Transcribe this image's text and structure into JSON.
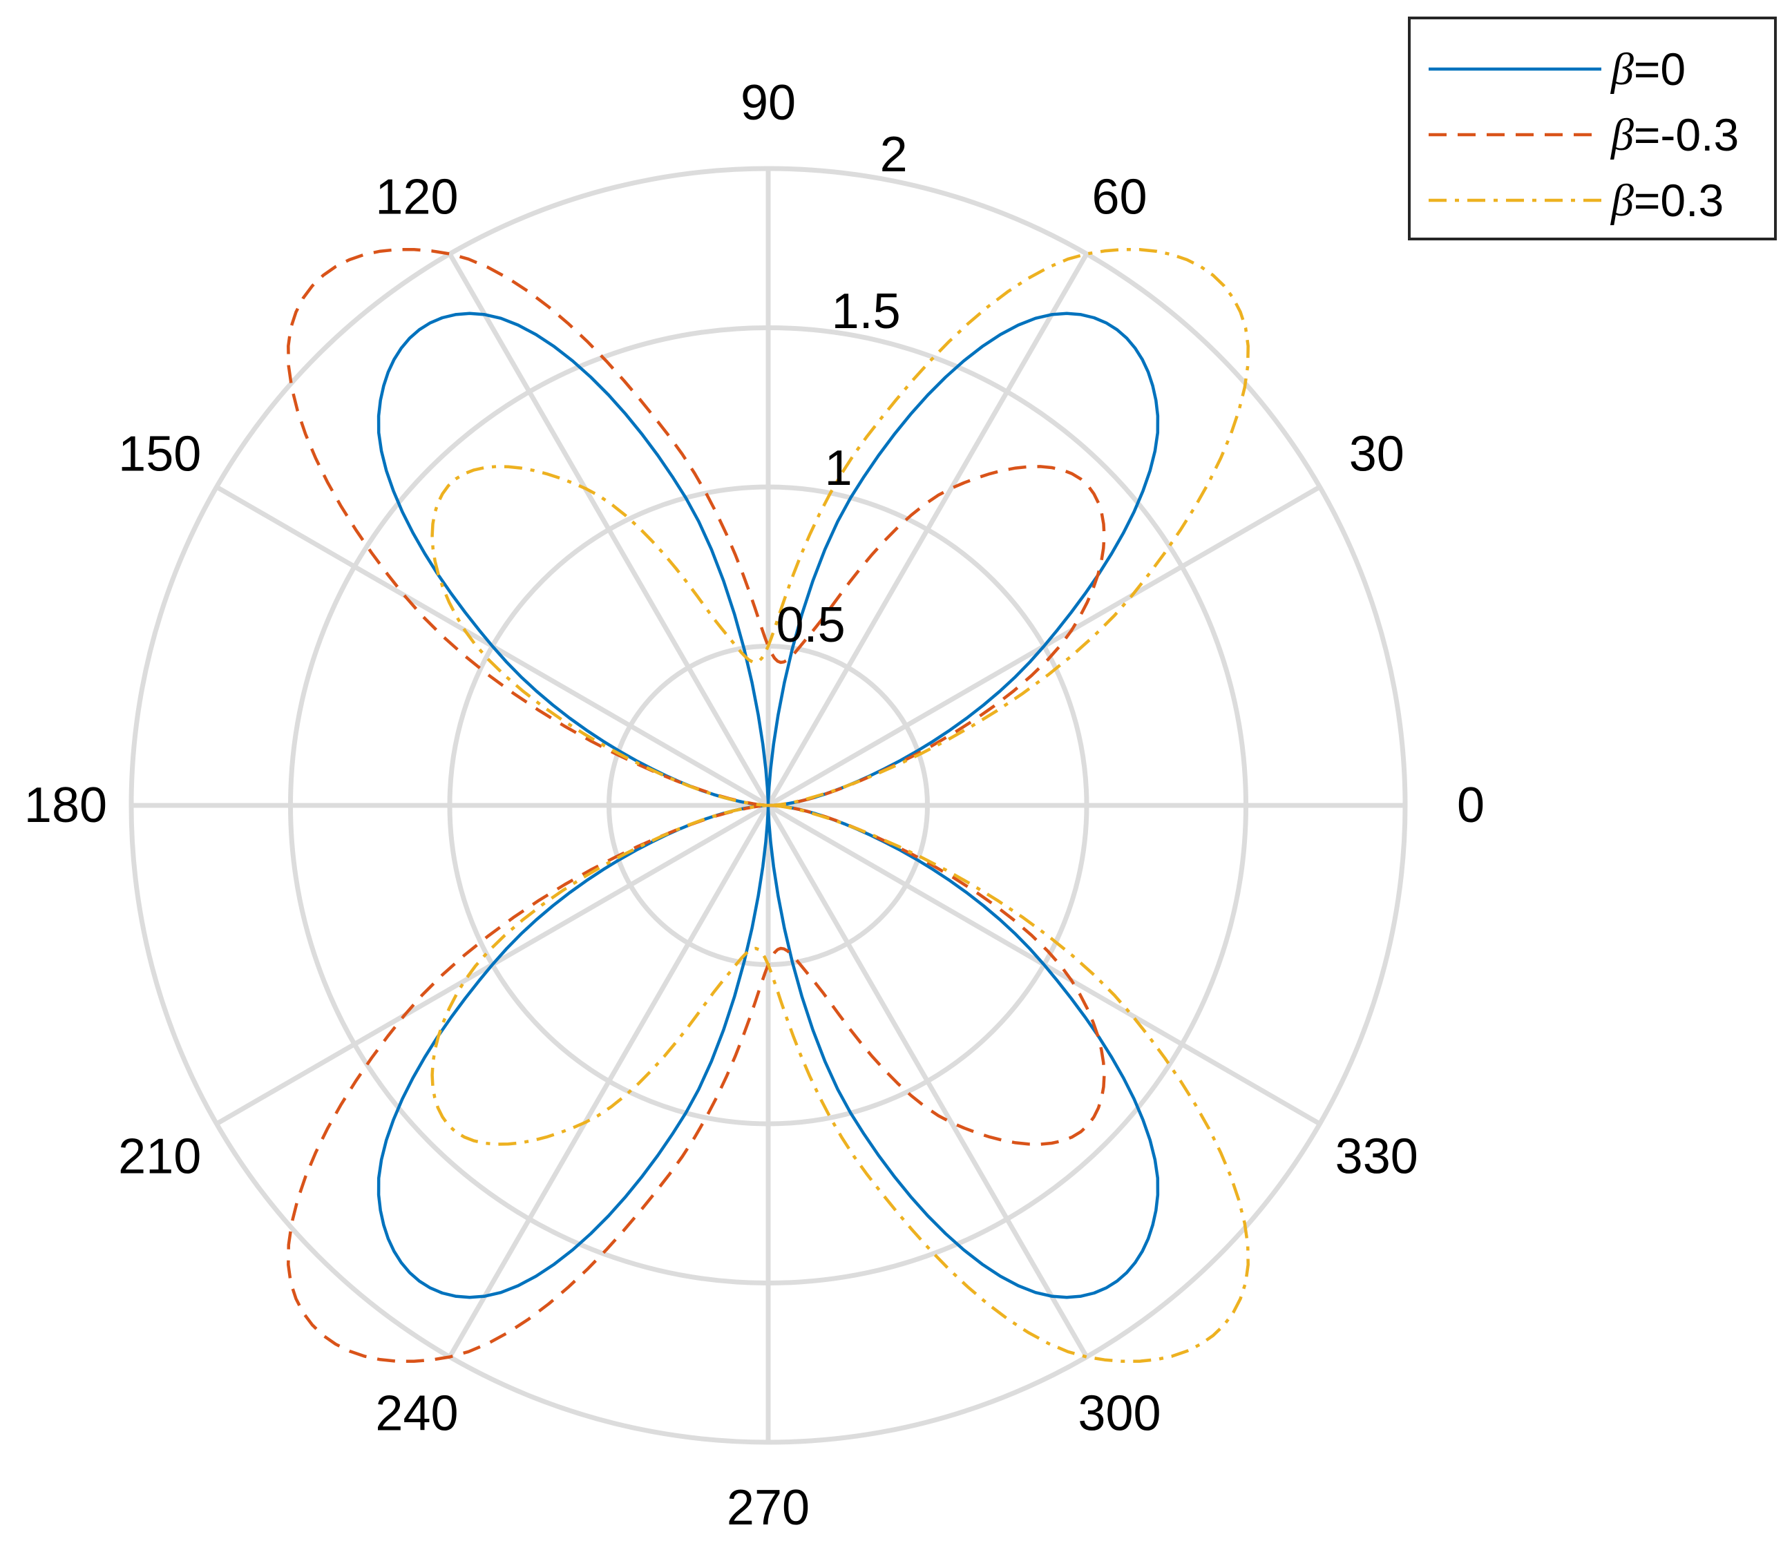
{
  "chart_data": {
    "type": "line",
    "coordinate_system": "polar",
    "title": "",
    "theta_unit": "degrees",
    "theta_ticks": [
      0,
      30,
      60,
      90,
      120,
      150,
      180,
      210,
      240,
      270,
      300,
      330
    ],
    "theta_tick_labels": [
      "0",
      "30",
      "60",
      "90",
      "120",
      "150",
      "180",
      "210",
      "240",
      "270",
      "300",
      "330"
    ],
    "r_ticks": [
      0.5,
      1,
      1.5,
      2
    ],
    "r_tick_labels": [
      "0.5",
      "1",
      "1.5",
      "2"
    ],
    "rlim": [
      0,
      2
    ],
    "grid": true,
    "legend_position": "top-right",
    "series": [
      {
        "name": "β=0",
        "label_symbol": "β",
        "label_value": "=0",
        "color": "#0072BD",
        "style": "solid",
        "theta": [
          0,
          15,
          30,
          45,
          60,
          75,
          90,
          105,
          120,
          135,
          150,
          165,
          180,
          195,
          210,
          225,
          240,
          255,
          270,
          285,
          300,
          315,
          330,
          345,
          360
        ],
        "r": [
          0,
          0.29,
          1.0,
          1.73,
          1.78,
          1.0,
          0,
          1.0,
          1.78,
          1.73,
          1.0,
          0.29,
          0,
          0.29,
          1.0,
          1.73,
          1.78,
          1.0,
          0,
          1.0,
          1.78,
          1.73,
          1.0,
          0.29,
          0
        ]
      },
      {
        "name": "β=-0.3",
        "label_symbol": "β",
        "label_value": "=-0.3",
        "color": "#D95319",
        "style": "dashed",
        "theta": [
          0,
          15,
          30,
          45,
          60,
          75,
          90,
          105,
          120,
          135,
          150,
          165,
          180,
          195,
          210,
          225,
          240,
          255,
          270,
          285,
          300,
          315,
          330,
          345,
          360
        ],
        "r": [
          0,
          0.3,
          1.1,
          1.42,
          1.15,
          0.58,
          0.5,
          1.2,
          2.0,
          2.12,
          1.32,
          0.3,
          0,
          0.3,
          1.32,
          2.12,
          2.0,
          1.2,
          0.5,
          0.58,
          1.15,
          1.42,
          1.1,
          0.3,
          0
        ]
      },
      {
        "name": "β=0.3",
        "label_symbol": "β",
        "label_value": "=0.3",
        "color": "#EDB120",
        "style": "dashdot",
        "theta": [
          0,
          15,
          30,
          45,
          60,
          75,
          90,
          105,
          120,
          135,
          150,
          165,
          180,
          195,
          210,
          225,
          240,
          255,
          270,
          285,
          300,
          315,
          330,
          345,
          360
        ],
        "r": [
          0,
          0.3,
          1.32,
          2.12,
          2.0,
          1.2,
          0.5,
          0.58,
          1.15,
          1.42,
          1.1,
          0.3,
          0,
          0.3,
          1.1,
          1.42,
          1.15,
          0.58,
          0.5,
          1.2,
          2.0,
          2.12,
          1.32,
          0.3,
          0
        ]
      }
    ]
  }
}
